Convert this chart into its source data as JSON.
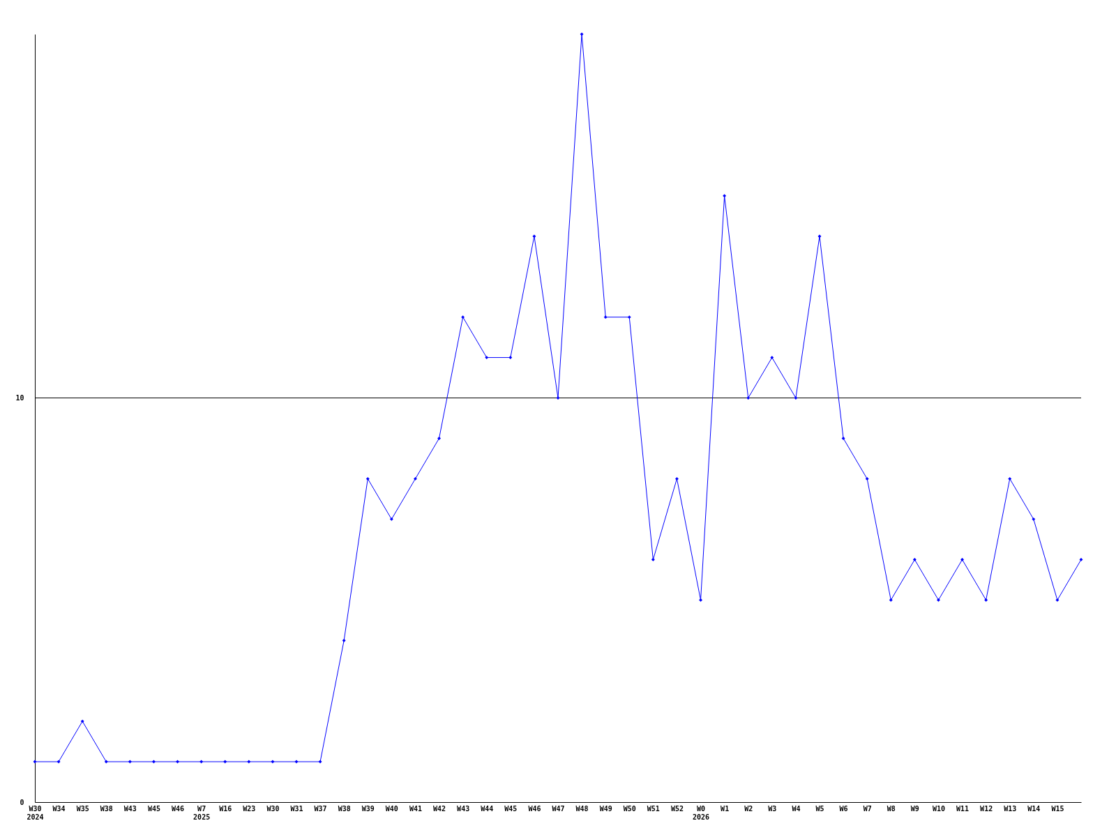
{
  "chart_data": {
    "type": "line",
    "categories": [
      "W30\n2024",
      "W34",
      "W35",
      "W38",
      "W43",
      "W45",
      "W46",
      "W7\n2025",
      "W16",
      "W23",
      "W30",
      "W31",
      "W37",
      "W38",
      "W39",
      "W40",
      "W41",
      "W42",
      "W43",
      "W44",
      "W45",
      "W46",
      "W47",
      "W48",
      "W49",
      "W50",
      "W51",
      "W52",
      "W0\n2026",
      "W1",
      "W2",
      "W3",
      "W4",
      "W5",
      "W6",
      "W7",
      "W8",
      "W9",
      "W10",
      "W11",
      "W12",
      "W13",
      "W14",
      "W15",
      null
    ],
    "series": [
      {
        "color": "#0000ff",
        "values": [
          1,
          1,
          2,
          1,
          1,
          1,
          1,
          1,
          1,
          1,
          1,
          1,
          1,
          4,
          8,
          7,
          8,
          9,
          12,
          11,
          11,
          14,
          10,
          19,
          12,
          12,
          6,
          8,
          5,
          15,
          10,
          11,
          10,
          14,
          9,
          8,
          5,
          6,
          5,
          6,
          5,
          8,
          7,
          5,
          6
        ]
      }
    ],
    "ylim": [
      0,
      19
    ],
    "yticks": [
      0,
      10
    ],
    "ref_lines": [
      {
        "axis": "y",
        "value": 10,
        "color": "#000000"
      }
    ],
    "marker": "diamond",
    "grid": false
  }
}
